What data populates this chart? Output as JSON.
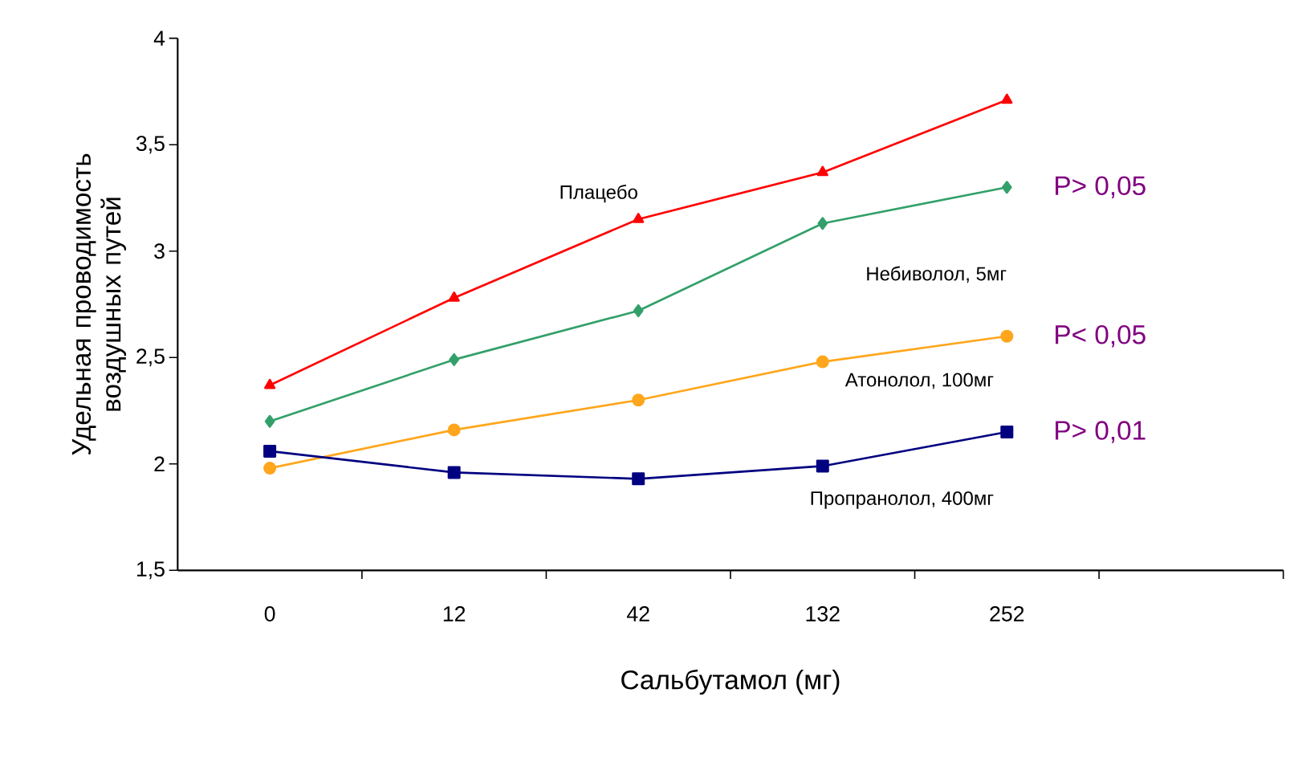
{
  "chart_data": {
    "type": "line",
    "xlabel": "Сальбутамол (мг)",
    "ylabel": "Удельная проводимость воздушных путей",
    "categories": [
      "0",
      "12",
      "42",
      "132",
      "252"
    ],
    "series": [
      {
        "name": "Плацебо",
        "color": "#ff0000",
        "marker": "triangle",
        "values": [
          2.37,
          2.78,
          3.15,
          3.37,
          3.71
        ]
      },
      {
        "name": "Небиволол, 5мг",
        "color": "#33a06a",
        "marker": "diamond",
        "values": [
          2.2,
          2.49,
          2.72,
          3.13,
          3.3
        ]
      },
      {
        "name": "Атонолол, 100мг",
        "color": "#ffa61c",
        "marker": "circle",
        "values": [
          1.98,
          2.16,
          2.3,
          2.48,
          2.6
        ]
      },
      {
        "name": "Пропранолол, 400мг",
        "color": "#000080",
        "marker": "square",
        "values": [
          2.06,
          1.96,
          1.93,
          1.99,
          2.15
        ]
      }
    ],
    "ylim": [
      1.5,
      4
    ],
    "yticks": [
      {
        "value": 1.5,
        "label": "1,5"
      },
      {
        "value": 2,
        "label": "2"
      },
      {
        "value": 2.5,
        "label": "2,5"
      },
      {
        "value": 3,
        "label": "3"
      },
      {
        "value": 3.5,
        "label": "3,5"
      },
      {
        "value": 4,
        "label": "4"
      }
    ],
    "annotations": [
      {
        "text": "P> 0,05",
        "x": "252",
        "y": 3.3
      },
      {
        "text": "P< 0,05",
        "x": "252",
        "y": 2.6
      },
      {
        "text": "P> 0,01",
        "x": "252",
        "y": 2.15
      }
    ],
    "grid": false,
    "legend": false,
    "line_style": "solid"
  }
}
